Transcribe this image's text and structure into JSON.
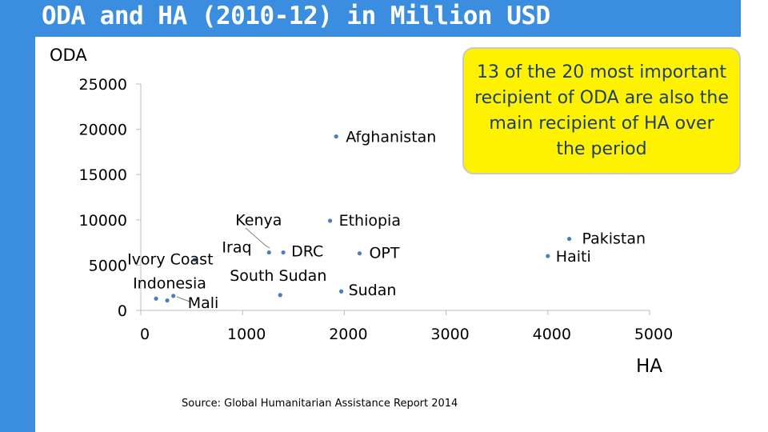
{
  "header": {
    "title": "ODA and HA (2010-12) in Million USD"
  },
  "callout": {
    "text": "13 of the 20 most important recipient of ODA are also the main recipient of HA over the period"
  },
  "source": {
    "text": "Source: Global Humanitarian Assistance Report 2014"
  },
  "colors": {
    "accent": "#3b8de0",
    "callout_bg": "#fff200",
    "callout_text": "#1f3f6b",
    "point": "#4a7eba"
  },
  "chart_data": {
    "type": "scatter",
    "title": "",
    "xlabel": "HA",
    "ylabel": "ODA",
    "xlim": [
      0,
      5000
    ],
    "ylim": [
      0,
      25000
    ],
    "x_ticks": [
      "0",
      "1000",
      "2000",
      "3000",
      "4000",
      "5000"
    ],
    "y_ticks": [
      "0",
      "5000",
      "10000",
      "15000",
      "20000",
      "25000"
    ],
    "grid": false,
    "points": [
      {
        "label": "Afghanistan",
        "x": 1920,
        "y": 19200
      },
      {
        "label": "Ethiopia",
        "x": 1860,
        "y": 9900
      },
      {
        "label": "Kenya",
        "x": 1260,
        "y": 6400
      },
      {
        "label": "Iraq",
        "x": 530,
        "y": 5600
      },
      {
        "label": "DRC",
        "x": 1400,
        "y": 6400
      },
      {
        "label": "OPT",
        "x": 2150,
        "y": 6300
      },
      {
        "label": "Pakistan",
        "x": 4210,
        "y": 7900
      },
      {
        "label": "Haiti",
        "x": 4000,
        "y": 6000
      },
      {
        "label": "Sudan",
        "x": 1970,
        "y": 2100
      },
      {
        "label": "South Sudan",
        "x": 1370,
        "y": 1700
      },
      {
        "label": "Ivory Coast",
        "x": 150,
        "y": 1300
      },
      {
        "label": "Indonesia",
        "x": 260,
        "y": 1100
      },
      {
        "label": "Mali",
        "x": 320,
        "y": 1600
      }
    ]
  }
}
